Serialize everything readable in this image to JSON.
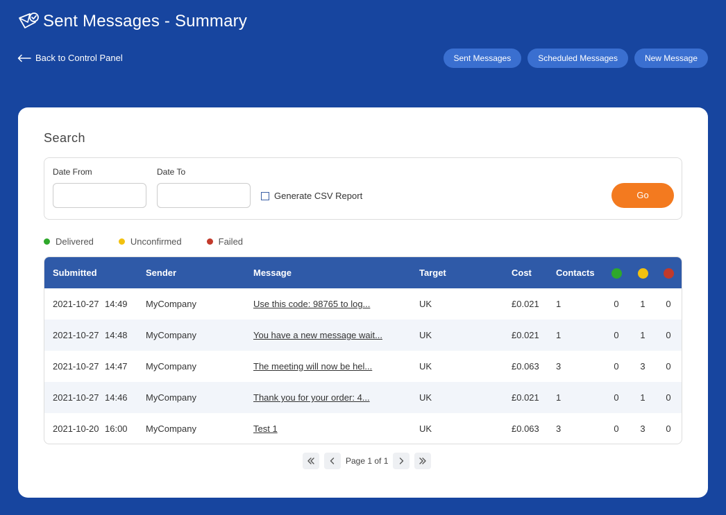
{
  "header": {
    "title": "Sent Messages - Summary",
    "icon": "envelope-check-icon"
  },
  "back_link": {
    "label": "Back to Control Panel"
  },
  "topnav": [
    {
      "label": "Sent Messages"
    },
    {
      "label": "Scheduled Messages"
    },
    {
      "label": "New Message"
    }
  ],
  "search": {
    "title": "Search",
    "date_from_label": "Date From",
    "date_from_value": "",
    "date_to_label": "Date To",
    "date_to_value": "",
    "csv_label": "Generate CSV Report",
    "csv_checked": false,
    "go_label": "Go"
  },
  "legend": [
    {
      "label": "Delivered",
      "color": "#2ea82b"
    },
    {
      "label": "Unconfirmed",
      "color": "#f2c10f"
    },
    {
      "label": "Failed",
      "color": "#c23a2b"
    }
  ],
  "table": {
    "headers": {
      "submitted": "Submitted",
      "sender": "Sender",
      "message": "Message",
      "target": "Target",
      "cost": "Cost",
      "contacts": "Contacts"
    },
    "rows": [
      {
        "date": "2021-10-27",
        "time": "14:49",
        "sender": "MyCompany",
        "message": "Use this code: 98765 to log...",
        "target": "UK",
        "cost": "£0.021",
        "contacts": "1",
        "delivered": "0",
        "unconfirmed": "1",
        "failed": "0"
      },
      {
        "date": "2021-10-27",
        "time": "14:48",
        "sender": "MyCompany",
        "message": "You have a new message wait...",
        "target": "UK",
        "cost": "£0.021",
        "contacts": "1",
        "delivered": "0",
        "unconfirmed": "1",
        "failed": "0"
      },
      {
        "date": "2021-10-27",
        "time": "14:47",
        "sender": "MyCompany",
        "message": "The meeting will now be hel...",
        "target": "UK",
        "cost": "£0.063",
        "contacts": "3",
        "delivered": "0",
        "unconfirmed": "3",
        "failed": "0"
      },
      {
        "date": "2021-10-27",
        "time": "14:46",
        "sender": "MyCompany",
        "message": "Thank you for your order: 4...",
        "target": "UK",
        "cost": "£0.021",
        "contacts": "1",
        "delivered": "0",
        "unconfirmed": "1",
        "failed": "0"
      },
      {
        "date": "2021-10-20",
        "time": "16:00",
        "sender": "MyCompany",
        "message": "Test 1",
        "target": "UK",
        "cost": "£0.063",
        "contacts": "3",
        "delivered": "0",
        "unconfirmed": "3",
        "failed": "0"
      }
    ]
  },
  "pagination": {
    "text": "Page 1 of 1"
  }
}
